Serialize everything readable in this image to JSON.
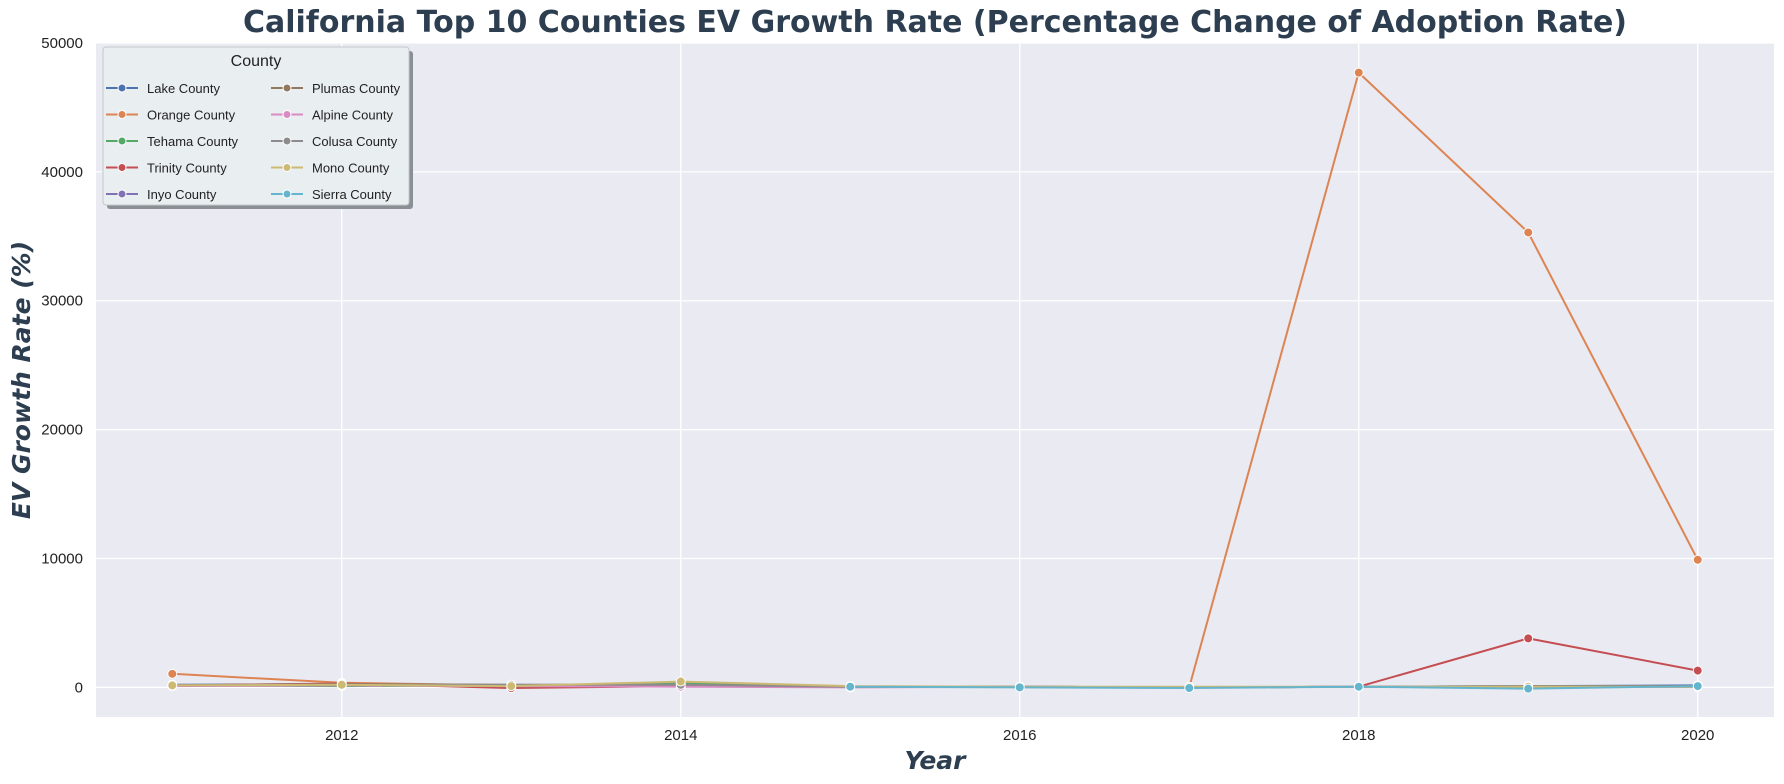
{
  "chart_data": {
    "type": "line",
    "title": "California Top 10 Counties EV Growth Rate (Percentage Change of Adoption Rate)",
    "xlabel": "Year",
    "ylabel": "EV Growth Rate (%)",
    "xlim": [
      2010.55,
      2020.45
    ],
    "ylim": [
      -2300,
      50000
    ],
    "x_ticks": [
      2012,
      2014,
      2016,
      2018,
      2020
    ],
    "y_ticks": [
      0,
      10000,
      20000,
      30000,
      40000,
      50000
    ],
    "grid": true,
    "background": "#eaeaf2",
    "legend": {
      "title": "County",
      "placement": "top-left",
      "columns": 2
    },
    "series": [
      {
        "name": "Lake County",
        "color": "#4c72b0",
        "x": [
          2011,
          2012,
          2013,
          2014,
          2015,
          2016,
          2017,
          2018,
          2019,
          2020
        ],
        "y": [
          200,
          250,
          150,
          200,
          50,
          50,
          0,
          50,
          100,
          150
        ]
      },
      {
        "name": "Orange County",
        "color": "#dd8452",
        "x": [
          2011,
          2012,
          2013,
          2014,
          2015,
          2016,
          2017,
          2018,
          2019,
          2020
        ],
        "y": [
          1050,
          350,
          150,
          150,
          50,
          50,
          0,
          47700,
          35300,
          9900
        ]
      },
      {
        "name": "Tehama County",
        "color": "#55a868",
        "x": [
          2011,
          2012,
          2013,
          2014,
          2015,
          2016,
          2017,
          2018,
          2019,
          2020
        ],
        "y": [
          150,
          100,
          150,
          300,
          50,
          50,
          0,
          50,
          50,
          50
        ]
      },
      {
        "name": "Trinity County",
        "color": "#c44e52",
        "x": [
          2011,
          2012,
          2013,
          2014,
          2015,
          2016,
          2017,
          2018,
          2019,
          2020
        ],
        "y": [
          150,
          300,
          -50,
          100,
          50,
          50,
          0,
          50,
          3800,
          1300
        ]
      },
      {
        "name": "Inyo County",
        "color": "#8172b3",
        "x": [
          2011,
          2012,
          2013,
          2014,
          2015,
          2016,
          2017,
          2018,
          2019,
          2020
        ],
        "y": [
          150,
          200,
          100,
          200,
          50,
          50,
          0,
          50,
          50,
          100
        ]
      },
      {
        "name": "Plumas County",
        "color": "#937860",
        "x": [
          2011,
          2012,
          2013,
          2014,
          2015,
          2016,
          2017,
          2018,
          2019,
          2020
        ],
        "y": [
          150,
          250,
          200,
          150,
          50,
          50,
          0,
          50,
          100,
          100
        ]
      },
      {
        "name": "Alpine County",
        "color": "#da8bc3",
        "x": [
          2011,
          2012,
          2013,
          2014,
          2015,
          2016,
          2017,
          2018,
          2019,
          2020
        ],
        "y": [
          100,
          150,
          100,
          50,
          0,
          50,
          0,
          50,
          50,
          50
        ]
      },
      {
        "name": "Colusa County",
        "color": "#8c8c8c",
        "x": [
          2011,
          2012,
          2013,
          2014,
          2015,
          2016,
          2017,
          2018,
          2019,
          2020
        ],
        "y": [
          150,
          200,
          200,
          200,
          50,
          50,
          0,
          50,
          100,
          50
        ]
      },
      {
        "name": "Mono County",
        "color": "#ccb974",
        "x": [
          2011,
          2012,
          2013,
          2014,
          2015,
          2016,
          2017,
          2018,
          2019,
          2020
        ],
        "y": [
          150,
          200,
          100,
          450,
          100,
          50,
          50,
          50,
          50,
          50
        ]
      },
      {
        "name": "Sierra County",
        "color": "#64b5cd",
        "x": [
          2015,
          2016,
          2017,
          2018,
          2019,
          2020
        ],
        "y": [
          50,
          0,
          -50,
          50,
          -100,
          100
        ]
      }
    ]
  }
}
